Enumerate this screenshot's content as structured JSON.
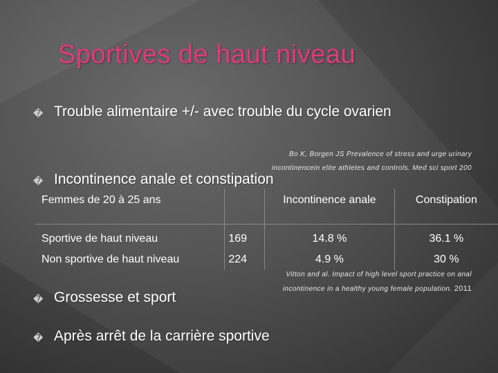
{
  "title": "Sportives de haut niveau",
  "bullet_glyph": "�",
  "bullets": [
    "Trouble alimentaire  +/- avec trouble du cycle ovarien",
    "Incontinence anale et constipation",
    "Grossesse et sport",
    "Après arrêt de la carrière sportive"
  ],
  "ref1": {
    "line1": "Bo K, Borgen JS Prevalence of stress and urge urinary",
    "line2": "incontinencein elite athletes and controls. Med sci sport 200"
  },
  "ref2": {
    "line1": "Vitton and al. Impact of high level sport practice on anal",
    "line2": "incontinence in a healthy young female population.",
    "year": "2011"
  },
  "table": {
    "headers": [
      "Femmes de 20 à 25 ans",
      "",
      "Incontinence anale",
      "Constipation"
    ],
    "rows": [
      [
        "Sportive de haut niveau",
        "169",
        "14.8 %",
        "36.1 %"
      ],
      [
        "Non sportive de haut niveau",
        "224",
        "4.9 %",
        "30 %"
      ]
    ]
  }
}
